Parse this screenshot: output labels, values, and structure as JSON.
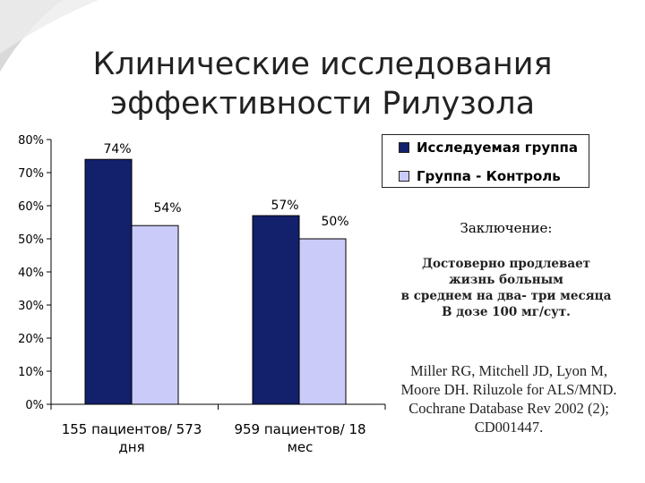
{
  "slide": {
    "title_line1": "Клинические исследования",
    "title_line2": "эффективности Рилузола",
    "conclusion_heading": "Заключение:",
    "conclusion_lines": [
      "Достоверно продлевает",
      "жизнь больным",
      "в среднем на два- три месяца",
      "В дозе 100 мг/сут."
    ],
    "reference_lines": [
      "Miller RG, Mitchell JD, Lyon M,",
      "Moore DH.  Riluzole for ALS/MND.",
      "Cochrane Database Rev 2002 (2);",
      "CD001447."
    ]
  },
  "chart_data": {
    "type": "bar",
    "categories": [
      "155 пациентов/ 573 дня",
      "959 пациентов/  18 мес"
    ],
    "category_lines": [
      [
        "155 пациентов/ 573",
        "дня"
      ],
      [
        "959 пациентов/  18",
        "мес"
      ]
    ],
    "series": [
      {
        "name": "Исследуемая группа",
        "values": [
          74,
          57
        ],
        "labels": [
          "74%",
          "57%"
        ],
        "color": "#13206b"
      },
      {
        "name": "Группа - Контроль",
        "values": [
          54,
          50
        ],
        "labels": [
          "54%",
          "50%"
        ],
        "color": "#cbcbf9"
      }
    ],
    "yticks": [
      "0%",
      "10%",
      "20%",
      "30%",
      "40%",
      "50%",
      "60%",
      "70%",
      "80%"
    ],
    "ylim": [
      0,
      80
    ],
    "title": "",
    "xlabel": "",
    "ylabel": "",
    "grid": false,
    "legend_position": "top-right"
  }
}
